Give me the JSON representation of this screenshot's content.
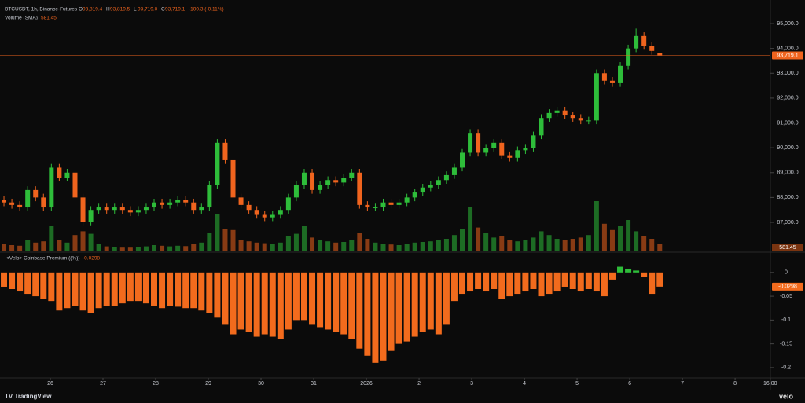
{
  "header": {
    "title": "BTCUSDT, 1h, Binance-Futures",
    "ohlc": [
      {
        "label": "O",
        "value": "93,819.4"
      },
      {
        "label": "H",
        "value": "93,819.5"
      },
      {
        "label": "L",
        "value": "93,719.0"
      },
      {
        "label": "C",
        "value": "93,719.1"
      }
    ],
    "change": "-100.3 (-0.11%)",
    "volume_title": "Volume (SMA)",
    "volume_value": "581.45"
  },
  "chart_data": [
    {
      "type": "candlestick",
      "up_color": "#2ebd3a",
      "down_color": "#f0641e",
      "grid": false,
      "x": [
        25.12,
        25.27,
        25.42,
        25.57,
        25.72,
        25.87,
        26.02,
        26.17,
        26.32,
        26.47,
        26.62,
        26.77,
        26.92,
        27.07,
        27.22,
        27.37,
        27.52,
        27.67,
        27.82,
        27.97,
        28.12,
        28.27,
        28.42,
        28.57,
        28.72,
        28.87,
        29.02,
        29.17,
        29.32,
        29.47,
        29.62,
        29.77,
        29.92,
        30.07,
        30.22,
        30.37,
        30.52,
        30.67,
        30.82,
        30.97,
        31.12,
        31.27,
        31.42,
        31.57,
        31.72,
        31.87,
        32.02,
        32.17,
        32.32,
        32.47,
        32.62,
        32.77,
        32.92,
        33.07,
        33.22,
        33.37,
        33.52,
        33.67,
        33.82,
        33.97,
        34.12,
        34.27,
        34.42,
        34.57,
        34.72,
        34.87,
        35.02,
        35.17,
        35.32,
        35.47,
        35.62,
        35.77,
        35.92,
        36.07,
        36.22,
        36.37,
        36.52,
        36.67,
        36.82,
        36.97,
        37.12,
        37.27,
        37.42,
        37.57
      ],
      "open": [
        87900,
        87800,
        87700,
        87600,
        88300,
        88000,
        87600,
        89200,
        88800,
        89000,
        88000,
        87000,
        87500,
        87600,
        87500,
        87600,
        87500,
        87400,
        87500,
        87600,
        87800,
        87700,
        87800,
        87900,
        87800,
        87500,
        87600,
        88500,
        90200,
        89500,
        88000,
        87700,
        87500,
        87300,
        87200,
        87300,
        87500,
        88000,
        88500,
        89000,
        88300,
        88500,
        88700,
        88600,
        88800,
        89000,
        87700,
        87600,
        87600,
        87800,
        87700,
        87800,
        88000,
        88200,
        88400,
        88500,
        88700,
        88900,
        89200,
        89800,
        90600,
        89800,
        90000,
        90200,
        89700,
        89600,
        89900,
        90000,
        90500,
        91200,
        91400,
        91500,
        91300,
        91200,
        91100,
        91100,
        93000,
        92700,
        92600,
        93300,
        94000,
        94500,
        94100,
        93819.4
      ],
      "high": [
        88050,
        87950,
        87850,
        88450,
        88450,
        88150,
        89350,
        89350,
        89150,
        89150,
        88150,
        87650,
        87750,
        87750,
        87750,
        87750,
        87650,
        87650,
        87750,
        87950,
        87950,
        87950,
        88050,
        88050,
        87950,
        87750,
        88650,
        90350,
        90350,
        89650,
        88150,
        87850,
        87650,
        87450,
        87450,
        87650,
        88150,
        88650,
        89150,
        89150,
        88650,
        88850,
        88850,
        88950,
        89150,
        89150,
        87850,
        87750,
        87950,
        87950,
        87950,
        88150,
        88350,
        88550,
        88650,
        88850,
        89050,
        89350,
        89950,
        90750,
        90750,
        90150,
        90350,
        90350,
        89850,
        90050,
        90150,
        90650,
        91350,
        91550,
        91650,
        91650,
        91450,
        91350,
        91250,
        93150,
        93150,
        92850,
        93450,
        94150,
        94800,
        94650,
        94250,
        93819.5
      ],
      "low": [
        87650,
        87550,
        87450,
        87450,
        87850,
        87450,
        87450,
        88650,
        88650,
        87850,
        86850,
        86850,
        87350,
        87350,
        87350,
        87350,
        87250,
        87250,
        87350,
        87450,
        87550,
        87550,
        87650,
        87650,
        87350,
        87350,
        87450,
        88350,
        89350,
        87850,
        87550,
        87350,
        87150,
        87050,
        87050,
        87150,
        87350,
        87850,
        88350,
        88150,
        88150,
        88350,
        88450,
        88450,
        88650,
        87550,
        87450,
        87450,
        87450,
        87550,
        87550,
        87650,
        87850,
        88050,
        88250,
        88350,
        88550,
        88750,
        89050,
        89650,
        89650,
        89650,
        89850,
        89550,
        89450,
        89450,
        89750,
        89850,
        90350,
        91050,
        91250,
        91150,
        91050,
        90950,
        90950,
        90950,
        92550,
        92450,
        92450,
        93150,
        93850,
        93950,
        93750,
        93719
      ],
      "close": [
        87800,
        87700,
        87600,
        88300,
        88000,
        87600,
        89200,
        88800,
        89000,
        88000,
        87000,
        87500,
        87600,
        87500,
        87600,
        87500,
        87400,
        87500,
        87600,
        87800,
        87700,
        87800,
        87900,
        87800,
        87500,
        87600,
        88500,
        90200,
        89500,
        88000,
        87700,
        87500,
        87300,
        87200,
        87300,
        87500,
        88000,
        88500,
        89000,
        88300,
        88500,
        88700,
        88600,
        88800,
        89000,
        87700,
        87600,
        87600,
        87800,
        87700,
        87800,
        88000,
        88200,
        88400,
        88500,
        88700,
        88900,
        89200,
        89800,
        90600,
        89800,
        90000,
        90200,
        89700,
        89600,
        89900,
        90000,
        90500,
        91200,
        91400,
        91500,
        91300,
        91200,
        91100,
        91100,
        93000,
        92700,
        92600,
        93300,
        94000,
        94500,
        94100,
        93900,
        93719.1
      ],
      "volume": [
        600,
        500,
        450,
        900,
        700,
        800,
        2000,
        900,
        700,
        1300,
        1600,
        1400,
        600,
        400,
        350,
        300,
        300,
        350,
        400,
        500,
        450,
        400,
        450,
        420,
        600,
        700,
        1500,
        3000,
        1800,
        1700,
        900,
        800,
        700,
        650,
        600,
        700,
        1200,
        1400,
        2000,
        1100,
        900,
        800,
        700,
        750,
        900,
        1500,
        1000,
        700,
        600,
        550,
        500,
        600,
        700,
        750,
        800,
        900,
        1000,
        1300,
        1800,
        3500,
        1900,
        1500,
        1100,
        1200,
        900,
        800,
        900,
        1100,
        1600,
        1300,
        1000,
        900,
        1000,
        1100,
        1300,
        4000,
        2200,
        1700,
        2000,
        2500,
        1600,
        1200,
        1000,
        581.45
      ],
      "xlim": [
        25.045,
        39.67
      ],
      "xticks": [
        26,
        27,
        28,
        29,
        30,
        31,
        {
          "value": 32,
          "label": "2026"
        },
        {
          "value": 33,
          "label": "2"
        },
        {
          "value": 34,
          "label": "3"
        },
        {
          "value": 35,
          "label": "4"
        },
        {
          "value": 36,
          "label": "5"
        },
        {
          "value": 37,
          "label": "6"
        },
        {
          "value": 38,
          "label": "7"
        },
        {
          "value": 39,
          "label": "8"
        },
        {
          "value": 39.6667,
          "label": "16:00"
        }
      ],
      "ylim": [
        85830,
        95950
      ],
      "yticks": [
        {
          "value": 87000,
          "label": "87,000.0"
        },
        {
          "value": 88000,
          "label": "88,000.0"
        },
        {
          "value": 89000,
          "label": "89,000.0"
        },
        {
          "value": 90000,
          "label": "90,000.0"
        },
        {
          "value": 91000,
          "label": "91,000.0"
        },
        {
          "value": 92000,
          "label": "92,000.0"
        },
        {
          "value": 93000,
          "label": "93,000.0"
        },
        {
          "value": 94000,
          "label": "94,000.0"
        },
        {
          "value": 95000,
          "label": "95,000.0"
        }
      ],
      "price_line": {
        "value": 93719.1,
        "label": "93,719.1"
      }
    },
    {
      "type": "bar",
      "title": "<Velo> Coinbase Premium ((%))",
      "current": {
        "value": -0.0298,
        "label": "-0.0298"
      },
      "color_negative": "#f26b1d",
      "color_positive": "#2ebd3a",
      "grid": false,
      "values": [
        -0.03,
        -0.035,
        -0.04,
        -0.045,
        -0.05,
        -0.055,
        -0.06,
        -0.08,
        -0.075,
        -0.07,
        -0.08,
        -0.085,
        -0.075,
        -0.07,
        -0.07,
        -0.065,
        -0.06,
        -0.06,
        -0.065,
        -0.07,
        -0.075,
        -0.07,
        -0.072,
        -0.075,
        -0.075,
        -0.08,
        -0.085,
        -0.095,
        -0.11,
        -0.13,
        -0.12,
        -0.125,
        -0.135,
        -0.13,
        -0.135,
        -0.14,
        -0.12,
        -0.1,
        -0.1,
        -0.11,
        -0.115,
        -0.12,
        -0.125,
        -0.13,
        -0.14,
        -0.16,
        -0.175,
        -0.19,
        -0.185,
        -0.165,
        -0.15,
        -0.145,
        -0.135,
        -0.125,
        -0.12,
        -0.13,
        -0.11,
        -0.06,
        -0.045,
        -0.04,
        -0.035,
        -0.04,
        -0.035,
        -0.055,
        -0.05,
        -0.045,
        -0.04,
        -0.035,
        -0.05,
        -0.045,
        -0.04,
        -0.03,
        -0.035,
        -0.04,
        -0.035,
        -0.04,
        -0.05,
        -0.015,
        0.012,
        0.008,
        0.004,
        -0.01,
        -0.045,
        -0.0298
      ],
      "ylim": [
        -0.22,
        0.041
      ],
      "yticks": [
        0,
        -0.05,
        -0.1,
        -0.15,
        -0.2
      ]
    }
  ],
  "footer": {
    "left": "TradingView",
    "right": "velo"
  }
}
